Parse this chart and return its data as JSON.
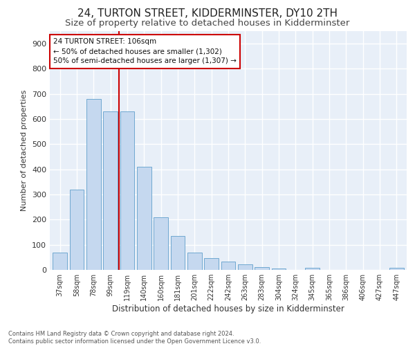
{
  "title1": "24, TURTON STREET, KIDDERMINSTER, DY10 2TH",
  "title2": "Size of property relative to detached houses in Kidderminster",
  "xlabel": "Distribution of detached houses by size in Kidderminster",
  "ylabel": "Number of detached properties",
  "categories": [
    "37sqm",
    "58sqm",
    "78sqm",
    "99sqm",
    "119sqm",
    "140sqm",
    "160sqm",
    "181sqm",
    "201sqm",
    "222sqm",
    "242sqm",
    "263sqm",
    "283sqm",
    "304sqm",
    "324sqm",
    "345sqm",
    "365sqm",
    "386sqm",
    "406sqm",
    "427sqm",
    "447sqm"
  ],
  "values": [
    70,
    320,
    680,
    630,
    630,
    410,
    210,
    135,
    70,
    48,
    33,
    22,
    12,
    5,
    0,
    8,
    0,
    0,
    0,
    0,
    8
  ],
  "bar_color": "#c5d8ef",
  "bar_edge_color": "#6fa8d0",
  "vline_x": 3.5,
  "vline_color": "#cc0000",
  "annotation_text": "24 TURTON STREET: 106sqm\n← 50% of detached houses are smaller (1,302)\n50% of semi-detached houses are larger (1,307) →",
  "annotation_box_color": "#ffffff",
  "annotation_box_edge": "#cc0000",
  "footer_text": "Contains HM Land Registry data © Crown copyright and database right 2024.\nContains public sector information licensed under the Open Government Licence v3.0.",
  "ylim": [
    0,
    950
  ],
  "yticks": [
    0,
    100,
    200,
    300,
    400,
    500,
    600,
    700,
    800,
    900
  ],
  "bg_color": "#ffffff",
  "plot_bg_color": "#e8eff8",
  "grid_color": "#ffffff",
  "title1_fontsize": 11,
  "title2_fontsize": 9.5
}
